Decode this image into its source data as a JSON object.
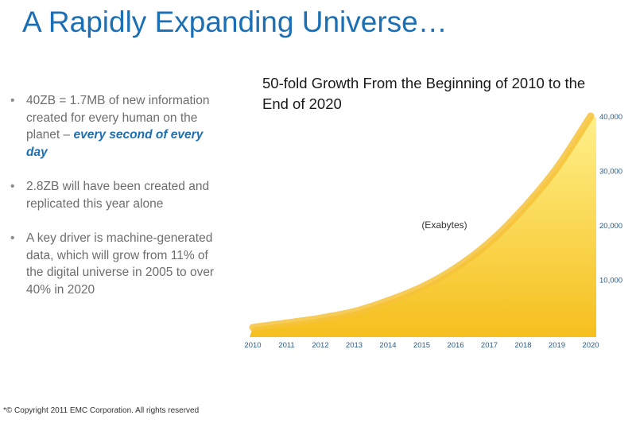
{
  "slide": {
    "title": "A Rapidly Expanding Universe…",
    "bullets": [
      {
        "text": "40ZB = 1.7MB of new information created for every human on the planet – ",
        "emphasis": "every second of every day"
      },
      {
        "text": "2.8ZB will have been created and replicated this year alone"
      },
      {
        "text": "A key driver is machine-generated data, which will grow from 11% of the digital universe in 2005 to over 40% in 2020"
      }
    ],
    "bullet_symbol": "•",
    "copyright": "*© Copyright 2011 EMC Corporation. All rights reserved"
  },
  "colors": {
    "title_blue": "#1b6fb4",
    "area_fill_top": "#fff08a",
    "area_fill_bottom": "#f5bf1e",
    "area_edge": "#f6c23a",
    "axis_text": "#2a5b86"
  },
  "chart_data": {
    "type": "area",
    "title": "50-fold Growth From the Beginning of 2010 to the End of 2020",
    "unit_label": "(Exabytes)",
    "x": [
      "2010",
      "2011",
      "2012",
      "2013",
      "2014",
      "2015",
      "2016",
      "2017",
      "2018",
      "2019",
      "2020"
    ],
    "values": [
      1200,
      2000,
      2900,
      4100,
      6100,
      8600,
      12100,
      16800,
      23000,
      30500,
      40000
    ],
    "y_ticks": [
      "10,000",
      "20,000",
      "30,000",
      "40,000"
    ],
    "ylim": [
      0,
      40000
    ],
    "y_axis_side": "right",
    "grid": false
  }
}
